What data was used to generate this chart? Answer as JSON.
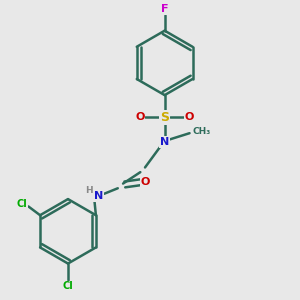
{
  "background_color": "#e8e8e8",
  "atom_colors": {
    "C": "#2d6b5a",
    "N": "#1a1acc",
    "O": "#cc0000",
    "S": "#ccaa00",
    "F": "#cc00cc",
    "Cl": "#00aa00",
    "H": "#888888"
  },
  "bond_color": "#2d6b5a",
  "bond_width": 1.8,
  "font_size_atom": 8,
  "figsize": [
    3.0,
    3.0
  ],
  "dpi": 100
}
